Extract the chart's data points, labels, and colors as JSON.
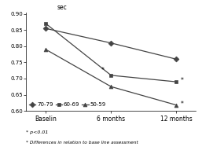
{
  "x_labels": [
    "Baselin",
    "6 months",
    "12 months"
  ],
  "x_values": [
    0,
    1,
    2
  ],
  "series": [
    {
      "label": "70-79",
      "values": [
        0.855,
        0.81,
        0.76
      ],
      "marker": "D",
      "color": "#444444",
      "linestyle": "-",
      "markersize": 3.5
    },
    {
      "label": "60-69",
      "values": [
        0.87,
        0.71,
        0.69
      ],
      "marker": "s",
      "color": "#444444",
      "linestyle": "-",
      "markersize": 3.5
    },
    {
      "label": "50-59",
      "values": [
        0.79,
        0.675,
        0.618
      ],
      "marker": "^",
      "color": "#444444",
      "linestyle": "-",
      "markersize": 3.5
    }
  ],
  "ylabel": "sec",
  "ylim": [
    0.6,
    0.905
  ],
  "yticks": [
    0.6,
    0.65,
    0.7,
    0.75,
    0.8,
    0.85,
    0.9
  ],
  "note1": "* p<0.01",
  "note2": "* Differences in relation to base line assessment",
  "background_color": "#ffffff",
  "axis_fontsize": 5.5,
  "legend_fontsize": 5.0,
  "tick_fontsize": 5.0,
  "note_fontsize": 4.5
}
